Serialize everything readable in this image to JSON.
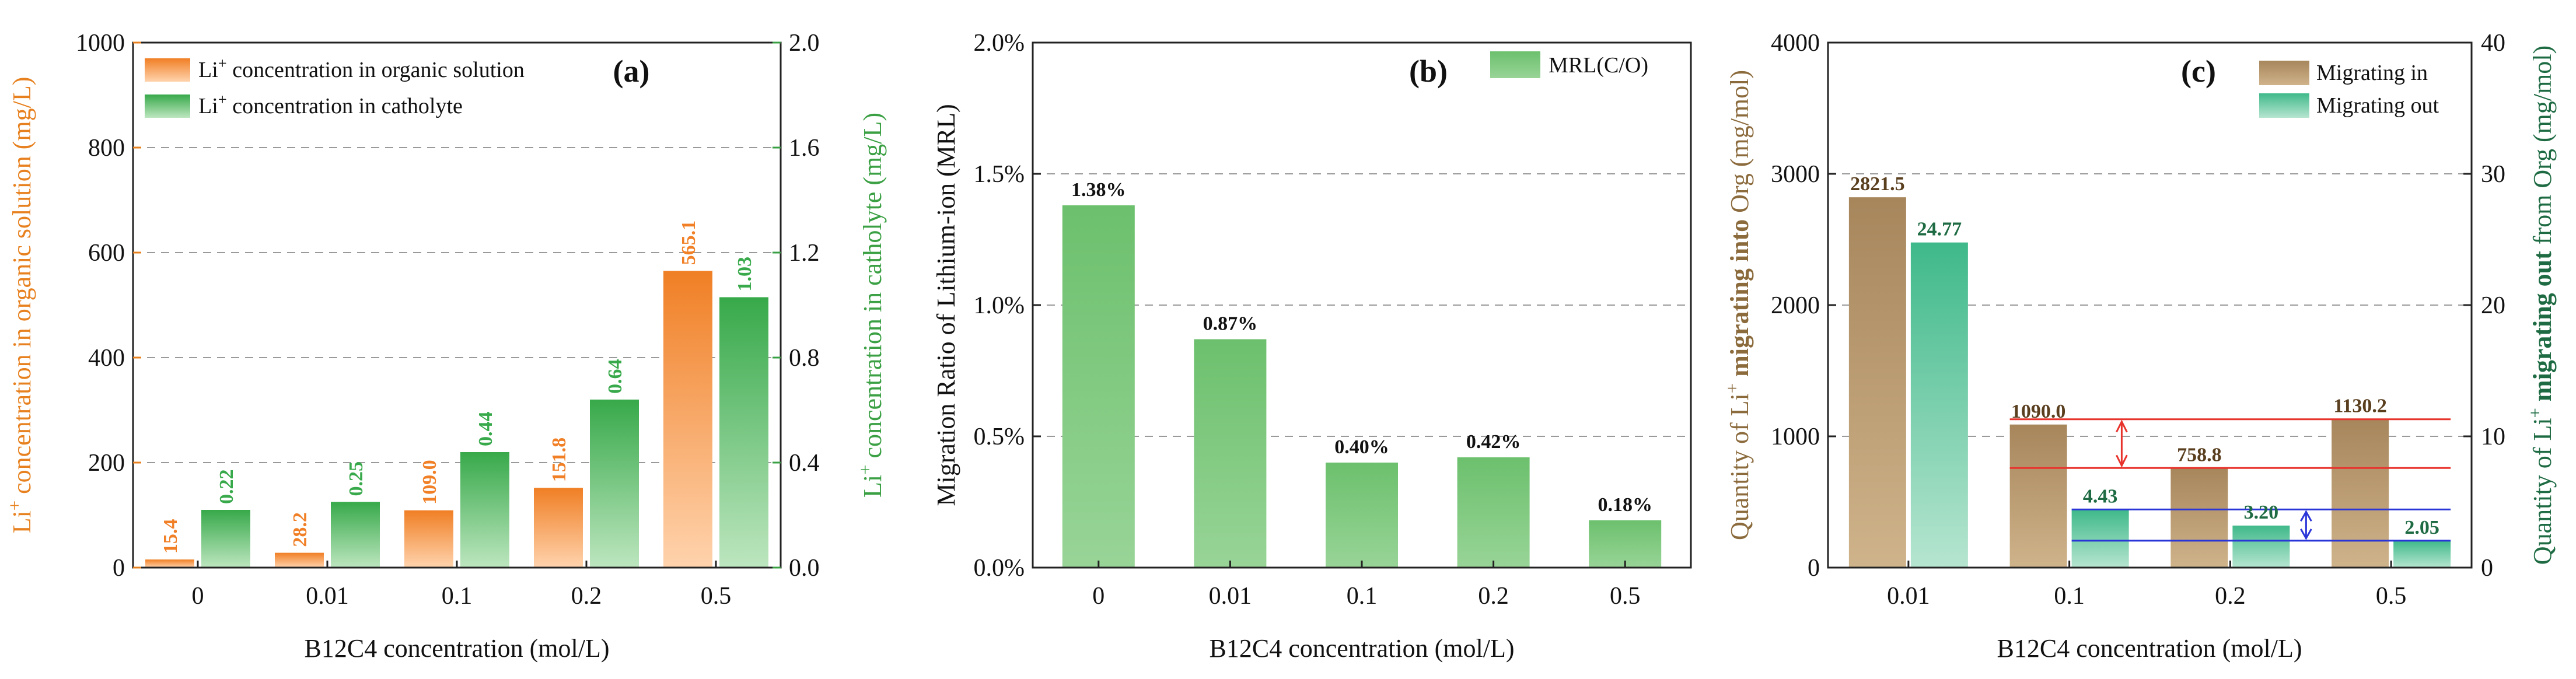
{
  "colors": {
    "orange": "#f07f25",
    "orange_light": "#ffd0a8",
    "green": "#37a94a",
    "green_light": "#b6e3b9",
    "bar_green": "#7fc97f",
    "brown": "#a7865c",
    "brown_light": "#c9aa80",
    "teal": "#3fb98a",
    "teal_light": "#a9e0c8",
    "red": "#e8332d",
    "blue": "#2a35d8",
    "axis_orange": "#e7801e",
    "axis_green": "#3aa043",
    "axis_brown": "#8b6a3c",
    "axis_darkgreen": "#1e6b43"
  },
  "chart_data": [
    {
      "panel": "(a)",
      "type": "bar",
      "categories": [
        "0",
        "0.01",
        "0.1",
        "0.2",
        "0.5"
      ],
      "xlabel": "B12C4 concentration (mol/L)",
      "ylabel_left": "Li+ concentration in organic solution (mg/L)",
      "ylabel_left_parts": [
        "Li",
        "+",
        " concentration in organic solution (mg/L)"
      ],
      "ylabel_right": "Li+ concentration in catholyte (mg/L)",
      "ylabel_right_parts": [
        "Li",
        "+",
        " concentration in catholyte (mg/L)"
      ],
      "ylim_left": [
        0,
        1000
      ],
      "ylim_right": [
        0,
        2.0
      ],
      "yticks_left": [
        "0",
        "200",
        "400",
        "600",
        "800",
        "1000"
      ],
      "yticks_right": [
        "0.0",
        "0.4",
        "0.8",
        "1.2",
        "1.6",
        "2.0"
      ],
      "series": [
        {
          "name": "Li+ concentration in organic solution",
          "legend_parts": [
            "Li",
            "+",
            " concentration in organic solution"
          ],
          "axis": "left",
          "values": [
            15.4,
            28.2,
            109.0,
            151.8,
            565.1
          ],
          "labels": [
            "15.4",
            "28.2",
            "109.0",
            "151.8",
            "565.1"
          ]
        },
        {
          "name": "Li+ concentration in catholyte",
          "legend_parts": [
            "Li",
            "+",
            " concentration in catholyte"
          ],
          "axis": "right",
          "values": [
            0.22,
            0.25,
            0.44,
            0.64,
            1.03
          ],
          "labels": [
            "0.22",
            "0.25",
            "0.44",
            "0.64",
            "1.03"
          ]
        }
      ]
    },
    {
      "panel": "(b)",
      "type": "bar",
      "categories": [
        "0",
        "0.01",
        "0.1",
        "0.2",
        "0.5"
      ],
      "xlabel": "B12C4 concentration (mol/L)",
      "ylabel": "Migration Ratio of Lithium-ion (MRL)",
      "ylim": [
        0,
        2.0
      ],
      "yticks": [
        "0.0%",
        "0.5%",
        "1.0%",
        "1.5%",
        "2.0%"
      ],
      "series": [
        {
          "name": "MRL(C/O)",
          "values": [
            1.38,
            0.87,
            0.4,
            0.42,
            0.18
          ],
          "labels": [
            "1.38%",
            "0.87%",
            "0.40%",
            "0.42%",
            "0.18%"
          ]
        }
      ]
    },
    {
      "panel": "(c)",
      "type": "bar",
      "categories": [
        "0.01",
        "0.1",
        "0.2",
        "0.5"
      ],
      "xlabel": "B12C4 concentration (mol/L)",
      "ylabel_left": "Quantity of Li+ migrating into Org (mg/mol)",
      "ylabel_left_parts": [
        "Quantity of Li",
        "+",
        " ",
        "migrating into",
        " Org (mg/mol)"
      ],
      "ylabel_right": "Quantity of Li+ migrating out from Org (mg/mol)",
      "ylabel_right_parts": [
        "Quantity of Li",
        "+",
        " ",
        "migrating out",
        " from Org (mg/mol)"
      ],
      "ylim_left": [
        0,
        4000
      ],
      "ylim_right": [
        0,
        40
      ],
      "yticks_left": [
        "0",
        "1000",
        "2000",
        "3000",
        "4000"
      ],
      "yticks_right": [
        "0",
        "10",
        "20",
        "30",
        "40"
      ],
      "series": [
        {
          "name": "Migrating in",
          "axis": "left",
          "values": [
            2821.5,
            1090.0,
            758.8,
            1130.2
          ],
          "labels": [
            "2821.5",
            "1090.0",
            "758.8",
            "1130.2"
          ]
        },
        {
          "name": "Migrating out",
          "axis": "right",
          "values": [
            24.77,
            4.43,
            3.2,
            2.05
          ],
          "labels": [
            "24.77",
            "4.43",
            "3.20",
            "2.05"
          ]
        }
      ]
    }
  ]
}
